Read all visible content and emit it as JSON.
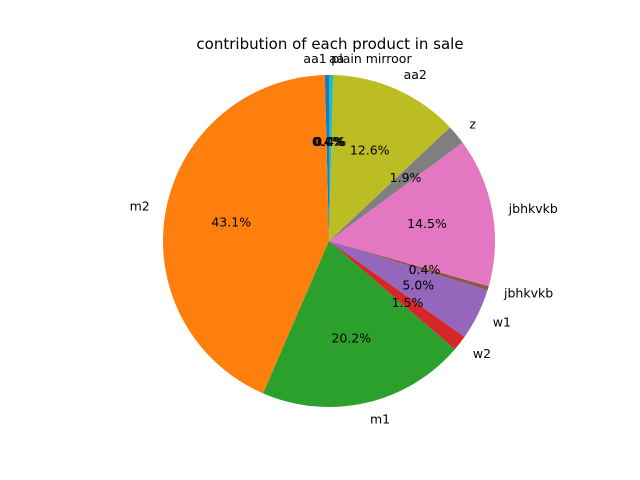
{
  "chart_data": {
    "type": "pie",
    "title": "contribution of each  product in sale",
    "start_angle_deg": 90,
    "direction": "counterclockwise",
    "slices": [
      {
        "label": "aa1",
        "value": 0.4,
        "pct_label": "0.4%",
        "color": "#1f77b4"
      },
      {
        "label": "m2",
        "value": 43.1,
        "pct_label": "43.1%",
        "color": "#ff7f0e"
      },
      {
        "label": "m1",
        "value": 20.2,
        "pct_label": "20.2%",
        "color": "#2ca02c"
      },
      {
        "label": "w2",
        "value": 1.5,
        "pct_label": "1.5%",
        "color": "#d62728"
      },
      {
        "label": "w1",
        "value": 5.0,
        "pct_label": "5.0%",
        "color": "#9467bd"
      },
      {
        "label": "jbhkvkb",
        "value": 0.4,
        "pct_label": "0.4%",
        "color": "#8c564b"
      },
      {
        "label": "jbhkvkb",
        "value": 14.5,
        "pct_label": "14.5%",
        "color": "#e377c2"
      },
      {
        "label": "z",
        "value": 1.9,
        "pct_label": "1.9%",
        "color": "#7f7f7f"
      },
      {
        "label": "aa2",
        "value": 12.6,
        "pct_label": "12.6%",
        "color": "#bcbd22"
      },
      {
        "label": "plain mirroor",
        "value": 0.4,
        "pct_label": "0.4%",
        "color": "#17becf"
      },
      {
        "label": "aa",
        "value": 0.0,
        "pct_label": "0.0%",
        "color": "#1f77b4"
      }
    ]
  }
}
